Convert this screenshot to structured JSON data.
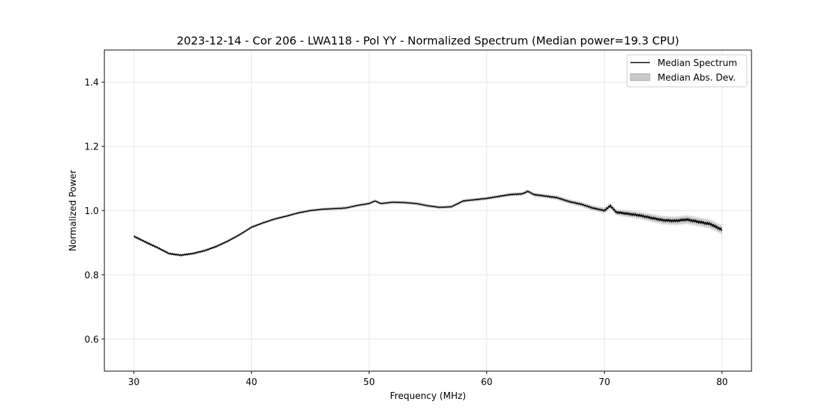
{
  "chart_data": {
    "type": "line",
    "title": "2023-12-14 - Cor 206 - LWA118 - Pol YY - Normalized Spectrum (Median power=19.3 CPU)",
    "xlabel": "Frequency (MHz)",
    "ylabel": "Normalized Power",
    "xlim": [
      27.5,
      82.5
    ],
    "ylim": [
      0.5,
      1.5
    ],
    "xticks": [
      30,
      40,
      50,
      60,
      70,
      80
    ],
    "yticks": [
      0.6,
      0.8,
      1.0,
      1.2,
      1.4
    ],
    "xtick_labels": [
      "30",
      "40",
      "50",
      "60",
      "70",
      "80"
    ],
    "ytick_labels": [
      "0.6",
      "0.8",
      "1.0",
      "1.2",
      "1.4"
    ],
    "grid": true,
    "legend_position": "top-right",
    "series": [
      {
        "name": "Median Spectrum",
        "color": "#000000",
        "x": [
          30,
          31,
          32,
          33,
          34,
          35,
          36,
          37,
          38,
          39,
          40,
          41,
          42,
          43,
          44,
          45,
          46,
          47,
          48,
          49,
          50,
          50.5,
          51,
          52,
          53,
          54,
          55,
          56,
          57,
          58,
          59,
          60,
          61,
          62,
          63,
          63.5,
          64,
          65,
          66,
          67,
          68,
          69,
          70,
          70.5,
          71,
          72,
          73,
          74,
          75,
          76,
          77,
          78,
          79,
          80
        ],
        "values": [
          0.92,
          0.902,
          0.885,
          0.866,
          0.861,
          0.866,
          0.875,
          0.888,
          0.905,
          0.925,
          0.948,
          0.962,
          0.974,
          0.983,
          0.993,
          1.0,
          1.004,
          1.006,
          1.008,
          1.016,
          1.022,
          1.03,
          1.022,
          1.026,
          1.025,
          1.022,
          1.015,
          1.01,
          1.012,
          1.03,
          1.034,
          1.038,
          1.044,
          1.05,
          1.052,
          1.06,
          1.05,
          1.045,
          1.04,
          1.028,
          1.02,
          1.008,
          1.0,
          1.015,
          0.995,
          0.99,
          0.985,
          0.977,
          0.97,
          0.968,
          0.972,
          0.965,
          0.958,
          0.94
        ]
      }
    ],
    "band": {
      "name": "Median Abs. Dev.",
      "color": "#bfbfbf",
      "x": [
        30,
        40,
        50,
        60,
        65,
        70,
        75,
        80
      ],
      "mad": [
        0.004,
        0.004,
        0.005,
        0.005,
        0.006,
        0.008,
        0.012,
        0.013
      ]
    }
  }
}
